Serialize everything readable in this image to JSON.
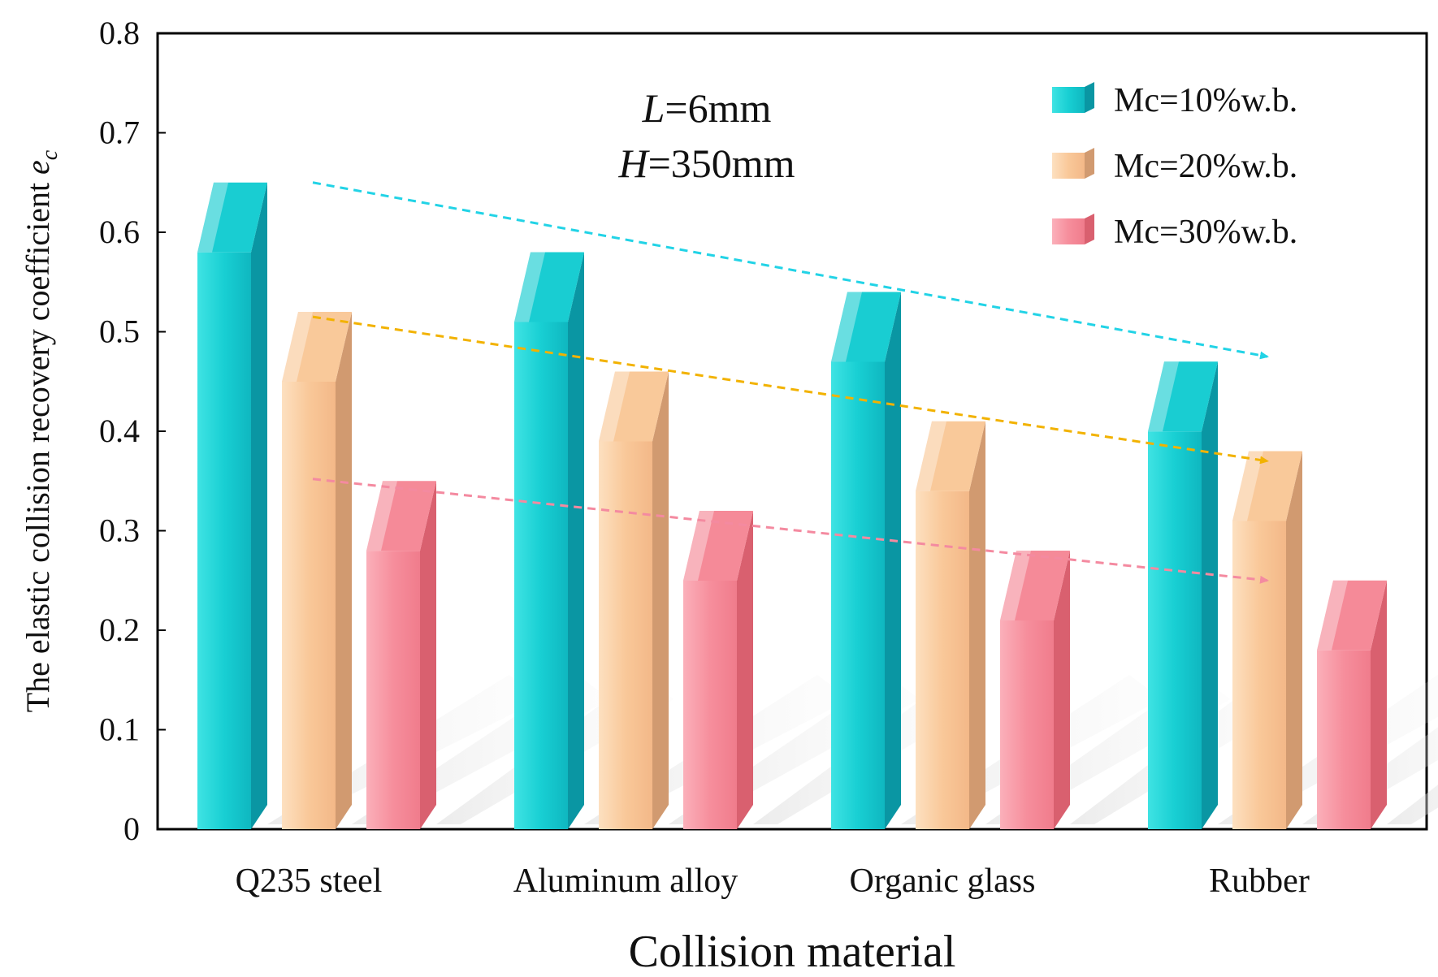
{
  "chart_data": {
    "type": "bar",
    "title": "",
    "xlabel": "Collision material",
    "ylabel": "The elastic collision recovery coefficient",
    "ylabel_symbol": "e",
    "ylabel_subscript": "c",
    "ylim": [
      0,
      0.8
    ],
    "yticks": [
      "0",
      "0.1",
      "0.2",
      "0.3",
      "0.4",
      "0.5",
      "0.6",
      "0.7",
      "0.8"
    ],
    "categories": [
      "Q235 steel",
      "Aluminum alloy",
      "Organic glass",
      "Rubber"
    ],
    "series": [
      {
        "name": "Mc=10%w.b.",
        "values": [
          0.65,
          0.58,
          0.54,
          0.47
        ]
      },
      {
        "name": "Mc=20%w.b.",
        "values": [
          0.52,
          0.46,
          0.41,
          0.38
        ]
      },
      {
        "name": "Mc=30%w.b.",
        "values": [
          0.35,
          0.32,
          0.28,
          0.25
        ]
      }
    ],
    "colors": [
      "#19cdd2",
      "#f9c99a",
      "#f58a98"
    ],
    "side_colors": [
      "#0a96a3",
      "#d19a70",
      "#d9606f"
    ],
    "trend_colors": [
      "#22d3e6",
      "#f2b200",
      "#f48aa0"
    ],
    "annotation": {
      "line1_var": "L",
      "line1_value": "=6mm",
      "line2_var": "H",
      "line2_value": "=350mm"
    },
    "legend_position": "top-right",
    "trend_arrows": [
      {
        "series": "Mc=10%w.b.",
        "from": [
          0.65
        ],
        "to": [
          0.475
        ]
      },
      {
        "series": "Mc=20%w.b.",
        "from": [
          0.515
        ],
        "to": [
          0.37
        ]
      },
      {
        "series": "Mc=30%w.b.",
        "from": [
          0.352
        ],
        "to": [
          0.25
        ]
      }
    ]
  }
}
